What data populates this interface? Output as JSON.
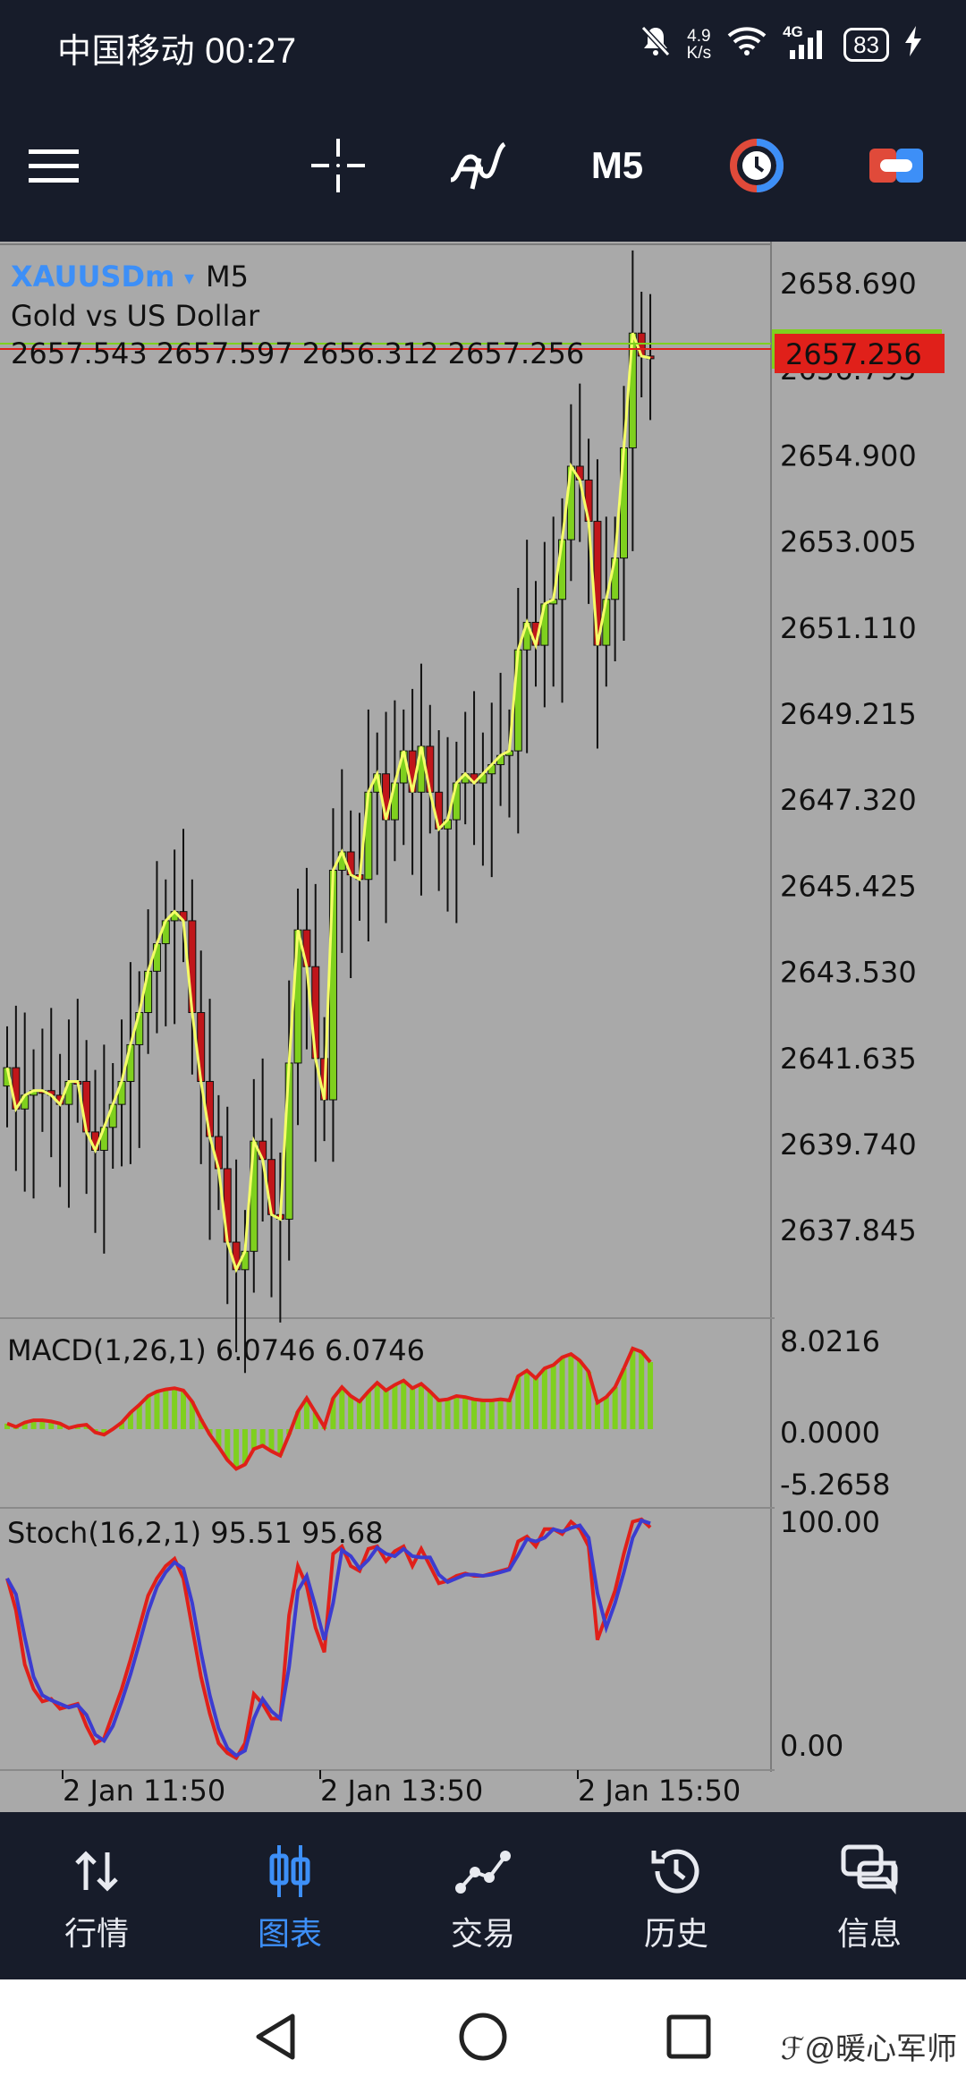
{
  "status_bar": {
    "carrier": "中国移动",
    "time": "00:27",
    "net_speed_value": "4.9",
    "net_speed_unit": "K/s",
    "network": "4G",
    "battery": "83"
  },
  "toolbar": {
    "period": "M5"
  },
  "chart": {
    "symbol": "XAUUSDm",
    "symbol_arrow": "▾",
    "period": "M5",
    "description": "Gold vs US Dollar",
    "ohlc": "2657.543 2657.597 2656.312 2657.256",
    "current_price": "2657.256",
    "price_axis": [
      "2658.690",
      "2656.795",
      "2654.900",
      "2653.005",
      "2651.110",
      "2649.215",
      "2647.320",
      "2645.425",
      "2643.530",
      "2641.635",
      "2639.740",
      "2637.845"
    ],
    "macd_label": "MACD(1,26,1) 6.0746 6.0746",
    "macd_axis": [
      "8.0216",
      "0.0000",
      "-5.2658"
    ],
    "stoch_label": "Stoch(16,2,1) 95.51 95.68",
    "stoch_axis": [
      "100.00",
      "0.00"
    ],
    "time_axis": [
      "2 Jan 11:50",
      "2 Jan 13:50",
      "2 Jan 15:50"
    ]
  },
  "chart_data": {
    "type": "candlestick",
    "symbol": "XAUUSDm",
    "timeframe": "M5",
    "description": "Gold vs US Dollar",
    "y_range": [
      2636.5,
      2659.5
    ],
    "ohlc_last": {
      "open": 2657.543,
      "high": 2657.597,
      "low": 2656.312,
      "close": 2657.256
    },
    "close": [
      2641.8,
      2640.9,
      2641.2,
      2641.3,
      2641.3,
      2641.2,
      2641.0,
      2641.5,
      2641.5,
      2640.4,
      2640.0,
      2640.5,
      2641.0,
      2641.5,
      2642.3,
      2643.0,
      2643.9,
      2644.5,
      2645.0,
      2645.2,
      2645.0,
      2643.0,
      2641.5,
      2640.3,
      2639.6,
      2638.0,
      2637.4,
      2637.8,
      2640.2,
      2639.8,
      2638.6,
      2638.5,
      2641.9,
      2644.8,
      2644.0,
      2642.0,
      2641.1,
      2646.1,
      2646.5,
      2646.0,
      2645.9,
      2647.8,
      2648.2,
      2647.2,
      2648.0,
      2648.7,
      2647.8,
      2648.8,
      2647.8,
      2647.0,
      2647.2,
      2648.0,
      2648.2,
      2648.0,
      2648.2,
      2648.4,
      2648.6,
      2648.7,
      2650.9,
      2651.5,
      2651.0,
      2651.9,
      2652.0,
      2653.3,
      2654.9,
      2654.6,
      2653.7,
      2651.0,
      2652.0,
      2652.9,
      2655.3,
      2657.8,
      2657.3,
      2657.256
    ],
    "up": [
      true,
      false,
      true,
      true,
      false,
      false,
      false,
      true,
      false,
      false,
      false,
      true,
      true,
      true,
      true,
      true,
      true,
      true,
      true,
      true,
      false,
      false,
      false,
      false,
      false,
      false,
      false,
      true,
      true,
      false,
      false,
      false,
      true,
      true,
      false,
      false,
      false,
      true,
      true,
      false,
      false,
      true,
      true,
      false,
      true,
      true,
      false,
      true,
      false,
      false,
      true,
      true,
      true,
      false,
      true,
      true,
      true,
      true,
      true,
      true,
      false,
      true,
      true,
      true,
      true,
      false,
      false,
      false,
      true,
      true,
      true,
      true,
      false,
      false
    ],
    "macd_range": [
      -5.2658,
      8.0216
    ],
    "macd": [
      0.5,
      0.2,
      0.6,
      0.8,
      0.8,
      0.7,
      0.5,
      0.1,
      0.3,
      0.4,
      -0.3,
      -0.5,
      0.0,
      0.6,
      1.5,
      2.2,
      3.0,
      3.4,
      3.6,
      3.7,
      3.5,
      2.5,
      0.9,
      -0.5,
      -1.6,
      -2.8,
      -3.6,
      -3.2,
      -1.8,
      -1.5,
      -2.0,
      -2.4,
      -0.5,
      1.6,
      2.8,
      1.5,
      0.2,
      2.8,
      3.8,
      3.0,
      2.5,
      3.4,
      4.2,
      3.5,
      4.0,
      4.4,
      3.7,
      4.1,
      3.4,
      2.6,
      2.7,
      3.0,
      2.9,
      2.7,
      2.6,
      2.6,
      2.7,
      2.6,
      4.8,
      5.3,
      4.6,
      5.5,
      5.8,
      6.5,
      6.8,
      6.2,
      5.2,
      2.4,
      2.9,
      3.8,
      5.5,
      7.3,
      7.0,
      6.07
    ],
    "stoch": [
      75,
      62,
      40,
      30,
      25,
      26,
      22,
      23,
      24,
      15,
      8,
      10,
      20,
      30,
      42,
      55,
      68,
      75,
      80,
      83,
      75,
      55,
      35,
      20,
      8,
      4,
      2,
      8,
      28,
      24,
      18,
      18,
      60,
      80,
      72,
      55,
      45,
      85,
      88,
      80,
      78,
      87,
      88,
      82,
      86,
      88,
      80,
      87,
      80,
      73,
      74,
      76,
      77,
      76,
      76,
      77,
      78,
      79,
      90,
      92,
      88,
      95,
      95,
      93,
      98,
      95,
      88,
      50,
      60,
      70,
      85,
      98,
      99,
      95.68
    ],
    "stoch_range": [
      0,
      100
    ],
    "x_ticks": [
      "2 Jan 11:50",
      "2 Jan 13:50",
      "2 Jan 15:50"
    ]
  }
}
